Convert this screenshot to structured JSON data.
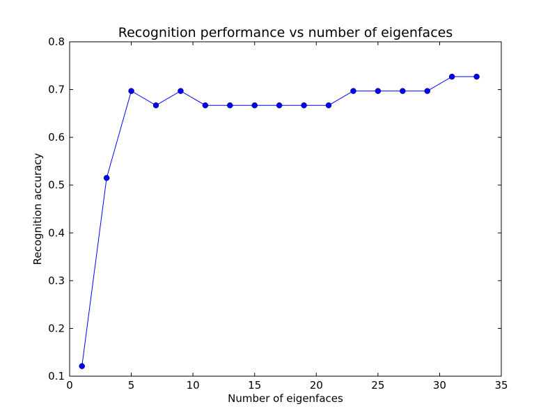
{
  "chart_data": {
    "type": "line",
    "title": "Recognition performance vs number of eigenfaces",
    "xlabel": "Number of eigenfaces",
    "ylabel": "Recognition accuracy",
    "xlim": [
      0,
      35
    ],
    "ylim": [
      0.1,
      0.8
    ],
    "xticks": [
      0,
      5,
      10,
      15,
      20,
      25,
      30,
      35
    ],
    "yticks": [
      0.1,
      0.2,
      0.3,
      0.4,
      0.5,
      0.6,
      0.7,
      0.8
    ],
    "xtick_labels": [
      "0",
      "5",
      "10",
      "15",
      "20",
      "25",
      "30",
      "35"
    ],
    "ytick_labels": [
      "0.1",
      "0.2",
      "0.3",
      "0.4",
      "0.5",
      "0.6",
      "0.7",
      "0.8"
    ],
    "grid": false,
    "series": [
      {
        "color": "#0000ff",
        "marker": "circle",
        "x": [
          1,
          3,
          5,
          7,
          9,
          11,
          13,
          15,
          17,
          19,
          21,
          23,
          25,
          27,
          29,
          31,
          33
        ],
        "y": [
          0.121,
          0.515,
          0.697,
          0.667,
          0.697,
          0.667,
          0.667,
          0.667,
          0.667,
          0.667,
          0.667,
          0.697,
          0.697,
          0.697,
          0.697,
          0.727,
          0.727
        ]
      }
    ]
  }
}
